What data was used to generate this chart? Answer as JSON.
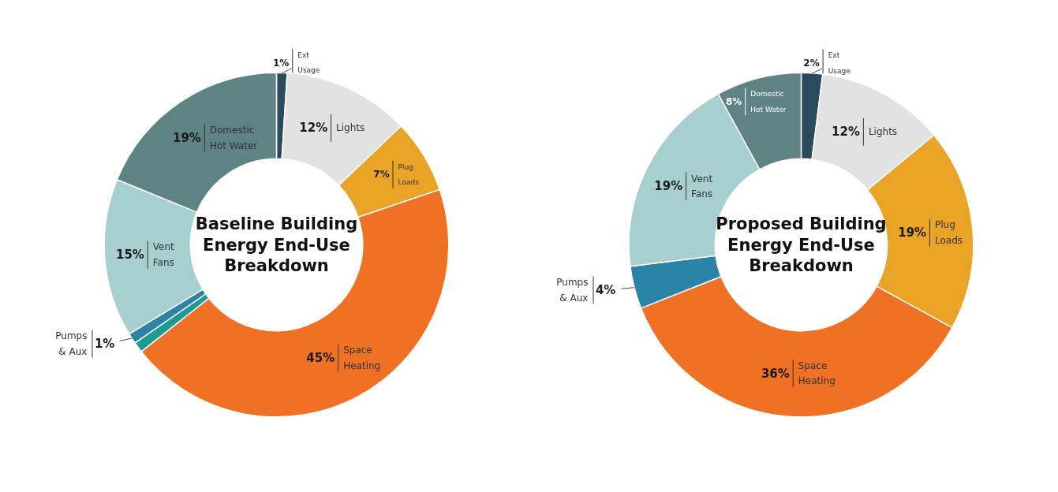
{
  "chart_data": [
    {
      "type": "donut",
      "title": "Baseline Building Energy End-Use Breakdown",
      "categories": [
        "Ext Usage",
        "Lights",
        "Plug Loads",
        "Space Heating",
        null,
        "Pumps & Aux",
        "Vent Fans",
        "Domestic Hot Water"
      ],
      "values": [
        1,
        12,
        7,
        45,
        1,
        1,
        15,
        19
      ],
      "value_labels": [
        "1%",
        "12%",
        "7%",
        "45%",
        null,
        "1%",
        "15%",
        "19%"
      ],
      "colors": [
        "#2d4a5c",
        "#e2e2e2",
        "#e9a325",
        "#f07024",
        "#1e9a94",
        "#2b84a8",
        "#a7cfcf",
        "#5f8282"
      ],
      "legend": false
    },
    {
      "type": "donut",
      "title": "Proposed Building Energy End-Use Breakdown",
      "categories": [
        "Ext Usage",
        "Lights",
        "Plug Loads",
        "Space Heating",
        "Pumps & Aux",
        "Vent Fans",
        "Domestic Hot Water"
      ],
      "values": [
        2,
        12,
        19,
        36,
        4,
        19,
        8
      ],
      "value_labels": [
        "2%",
        "12%",
        "19%",
        "36%",
        "4%",
        "19%",
        "8%"
      ],
      "colors": [
        "#2d4a5c",
        "#e2e2e2",
        "#e9a325",
        "#f07024",
        "#2b84a8",
        "#a7cfcf",
        "#5f8282"
      ],
      "legend": false
    }
  ]
}
